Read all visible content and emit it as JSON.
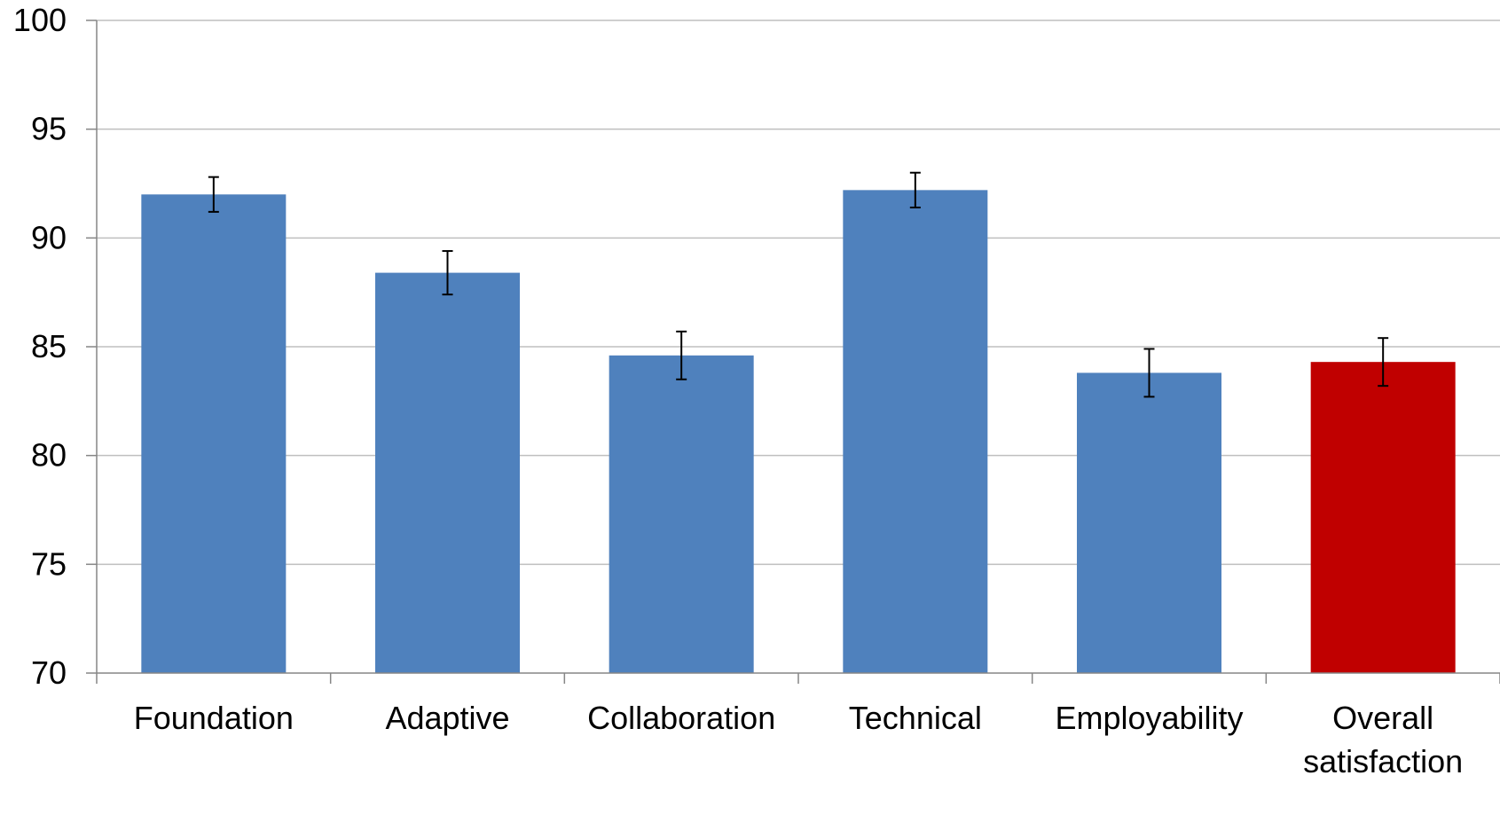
{
  "chart_data": {
    "type": "bar",
    "categories": [
      "Foundation",
      "Adaptive",
      "Collaboration",
      "Technical",
      "Employability",
      "Overall satisfaction"
    ],
    "category_label_lines": [
      [
        "Foundation"
      ],
      [
        "Adaptive"
      ],
      [
        "Collaboration"
      ],
      [
        "Technical"
      ],
      [
        "Employability"
      ],
      [
        "Overall",
        "satisfaction"
      ]
    ],
    "values": [
      92.0,
      88.4,
      84.6,
      92.2,
      83.8,
      84.3
    ],
    "error_low": [
      91.2,
      87.4,
      83.5,
      91.4,
      82.7,
      83.2
    ],
    "error_high": [
      92.8,
      89.4,
      85.7,
      93.0,
      84.9,
      85.4
    ],
    "bar_colors": [
      "#4F81BD",
      "#4F81BD",
      "#4F81BD",
      "#4F81BD",
      "#4F81BD",
      "#C00000"
    ],
    "ylim": [
      70,
      100
    ],
    "yticks": [
      70,
      75,
      80,
      85,
      90,
      95,
      100
    ],
    "title": "",
    "xlabel": "",
    "ylabel": "",
    "grid": true,
    "legend": "none",
    "colors": {
      "bar": "#4F81BD",
      "highlight_bar": "#C00000",
      "gridline": "#BFBFBF",
      "axis": "#868686",
      "error_bar": "#000000"
    }
  }
}
